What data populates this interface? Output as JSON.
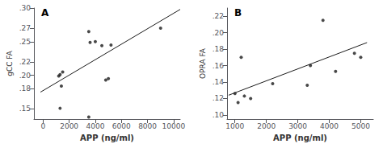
{
  "chart_data": [
    {
      "type": "scatter",
      "title": "A",
      "x_label": "APP (ng/ml)",
      "y_label": "gCC FA",
      "series": [
        {
          "type": "scatter",
          "color": "#1a1a1a",
          "x": [
            1200,
            1300,
            1500,
            1300,
            3500,
            3600,
            4000,
            4500,
            5000,
            5200,
            4800,
            9000,
            3500,
            1400
          ],
          "values": [
            0.199,
            0.201,
            0.205,
            0.151,
            0.265,
            0.249,
            0.25,
            0.244,
            0.195,
            0.245,
            0.193,
            0.27,
            0.138,
            0.184
          ]
        },
        {
          "type": "line",
          "color": "#1a1a1a",
          "x": [
            -200,
            10500
          ],
          "values": [
            0.175,
            0.298
          ]
        }
      ],
      "xlim": [
        -700,
        10500
      ],
      "ylim": [
        0.135,
        0.3
      ],
      "xticks": [
        0,
        2000,
        4000,
        6000,
        8000,
        10000
      ],
      "yticks": [
        {
          "value": 0.15,
          "label": ".15"
        },
        {
          "value": 0.18,
          "label": ".18"
        },
        {
          "value": 0.2,
          "label": ".20"
        },
        {
          "value": 0.22,
          "label": ".22"
        },
        {
          "value": 0.25,
          "label": ".25"
        },
        {
          "value": 0.27,
          "label": ".27"
        },
        {
          "value": 0.3,
          "label": ".30"
        }
      ],
      "grid": false
    },
    {
      "type": "scatter",
      "title": "B",
      "x_label": "APP (ng/ml)",
      "y_label": "OPRA FA",
      "series": [
        {
          "type": "scatter",
          "color": "#1a1a1a",
          "x": [
            1000,
            1100,
            1200,
            1300,
            1500,
            2200,
            3300,
            3400,
            3800,
            4200,
            4800,
            5000
          ],
          "values": [
            0.126,
            0.115,
            0.17,
            0.123,
            0.12,
            0.138,
            0.136,
            0.16,
            0.215,
            0.153,
            0.175,
            0.17
          ]
        },
        {
          "type": "line",
          "color": "#1a1a1a",
          "x": [
            800,
            5200
          ],
          "values": [
            0.124,
            0.188
          ]
        }
      ],
      "xlim": [
        750,
        5400
      ],
      "ylim": [
        0.095,
        0.23
      ],
      "xticks": [
        1000,
        2000,
        3000,
        4000,
        5000
      ],
      "yticks": [
        {
          "value": 0.1,
          "label": ".10"
        },
        {
          "value": 0.12,
          "label": ".12"
        },
        {
          "value": 0.14,
          "label": ".14"
        },
        {
          "value": 0.16,
          "label": ".16"
        },
        {
          "value": 0.18,
          "label": ".18"
        },
        {
          "value": 0.2,
          "label": ".20"
        },
        {
          "value": 0.22,
          "label": ".22"
        }
      ],
      "grid": false
    }
  ]
}
